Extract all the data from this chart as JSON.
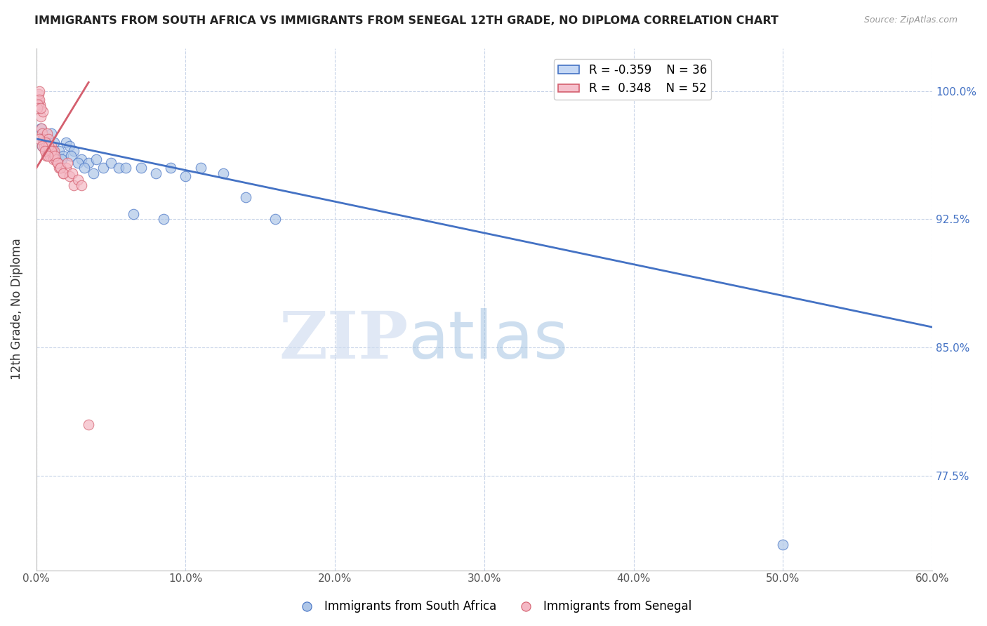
{
  "title": "IMMIGRANTS FROM SOUTH AFRICA VS IMMIGRANTS FROM SENEGAL 12TH GRADE, NO DIPLOMA CORRELATION CHART",
  "source": "Source: ZipAtlas.com",
  "xlabel_vals": [
    0.0,
    10.0,
    20.0,
    30.0,
    40.0,
    50.0,
    60.0
  ],
  "ylabel_vals": [
    100.0,
    92.5,
    85.0,
    77.5
  ],
  "ylabel_label": "12th Grade, No Diploma",
  "xlim": [
    0.0,
    60.0
  ],
  "ylim": [
    72.0,
    102.5
  ],
  "legend_blue_r": "-0.359",
  "legend_blue_n": "36",
  "legend_pink_r": "0.348",
  "legend_pink_n": "52",
  "watermark_zip": "ZIP",
  "watermark_atlas": "atlas",
  "blue_color": "#aec6e8",
  "pink_color": "#f4b8c4",
  "trendline_blue": "#4472c4",
  "trendline_pink": "#d45f6e",
  "blue_scatter_x": [
    0.3,
    0.5,
    0.8,
    1.0,
    1.2,
    1.5,
    1.8,
    2.0,
    2.2,
    2.5,
    3.0,
    3.5,
    4.0,
    4.5,
    5.0,
    5.5,
    6.0,
    7.0,
    8.0,
    9.0,
    10.0,
    11.0,
    12.5,
    14.0,
    16.0,
    0.6,
    1.1,
    1.7,
    2.3,
    2.8,
    3.2,
    3.8,
    6.5,
    8.5,
    50.0,
    0.4
  ],
  "blue_scatter_y": [
    97.8,
    97.2,
    96.8,
    97.5,
    97.0,
    96.5,
    96.2,
    97.0,
    96.8,
    96.5,
    96.0,
    95.8,
    96.0,
    95.5,
    95.8,
    95.5,
    95.5,
    95.5,
    95.2,
    95.5,
    95.0,
    95.5,
    95.2,
    93.8,
    92.5,
    97.0,
    96.5,
    96.0,
    96.2,
    95.8,
    95.5,
    95.2,
    92.8,
    92.5,
    73.5,
    96.8
  ],
  "pink_scatter_x": [
    0.1,
    0.15,
    0.2,
    0.25,
    0.3,
    0.35,
    0.4,
    0.45,
    0.5,
    0.55,
    0.6,
    0.65,
    0.7,
    0.75,
    0.8,
    0.85,
    0.9,
    0.95,
    1.0,
    1.05,
    1.1,
    1.15,
    1.2,
    1.3,
    1.4,
    1.5,
    1.6,
    1.8,
    2.0,
    2.2,
    2.5,
    0.22,
    0.42,
    0.62,
    0.82,
    1.02,
    1.22,
    1.42,
    1.62,
    1.82,
    2.1,
    2.4,
    2.8,
    3.0,
    3.5,
    0.18,
    0.38,
    0.58,
    0.78,
    0.12,
    0.08,
    0.28
  ],
  "pink_scatter_y": [
    99.5,
    99.8,
    100.0,
    99.2,
    98.5,
    97.8,
    97.5,
    97.2,
    97.0,
    96.8,
    96.5,
    96.2,
    97.5,
    96.8,
    97.2,
    96.5,
    96.2,
    96.5,
    96.8,
    96.5,
    96.2,
    96.0,
    96.5,
    96.0,
    95.8,
    95.5,
    95.5,
    95.2,
    95.5,
    95.0,
    94.5,
    99.5,
    98.8,
    97.0,
    96.8,
    96.5,
    96.2,
    95.8,
    95.5,
    95.2,
    95.8,
    95.2,
    94.8,
    94.5,
    80.5,
    97.2,
    96.8,
    96.5,
    96.2,
    99.2,
    99.0,
    99.0
  ],
  "blue_trend_x": [
    0.0,
    60.0
  ],
  "blue_trend_y": [
    97.2,
    86.2
  ],
  "pink_trend_x": [
    0.0,
    3.5
  ],
  "pink_trend_y": [
    95.5,
    100.5
  ],
  "background_color": "#ffffff",
  "grid_color": "#c8d4e8",
  "right_axis_color": "#4472c4",
  "bottom_legend_labels": [
    "Immigrants from South Africa",
    "Immigrants from Senegal"
  ]
}
